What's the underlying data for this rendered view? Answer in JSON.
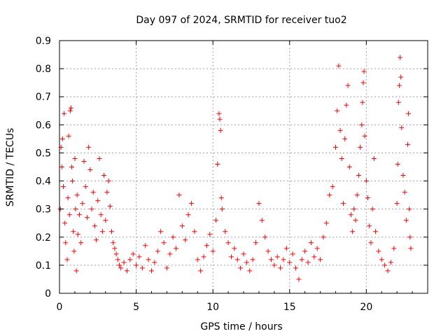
{
  "chart_data": {
    "type": "scatter",
    "title": "Day 097 of 2024, SRMTID for receiver tuo2",
    "xlabel": "GPS time / hours",
    "ylabel": "SRMTID / TECUs",
    "xlim": [
      0,
      24
    ],
    "ylim": [
      0,
      0.9
    ],
    "xticks": [
      0,
      5,
      10,
      15,
      20
    ],
    "xtick_labels": [
      "0",
      "5",
      "10",
      "15",
      "20"
    ],
    "yticks": [
      0,
      0.1,
      0.2,
      0.3,
      0.4,
      0.5,
      0.6,
      0.7,
      0.8,
      0.9
    ],
    "ytick_labels": [
      "0",
      "0.1",
      "0.2",
      "0.3",
      "0.4",
      "0.5",
      "0.6",
      "0.7",
      "0.8",
      "0.9"
    ],
    "grid": true,
    "marker": "+",
    "series": [
      {
        "name": "SRMTID",
        "color": "#ff0000",
        "points": [
          [
            0.05,
            0.3
          ],
          [
            0.1,
            0.52
          ],
          [
            0.15,
            0.45
          ],
          [
            0.2,
            0.55
          ],
          [
            0.25,
            0.38
          ],
          [
            0.3,
            0.64
          ],
          [
            0.35,
            0.25
          ],
          [
            0.4,
            0.18
          ],
          [
            0.5,
            0.12
          ],
          [
            0.55,
            0.34
          ],
          [
            0.6,
            0.56
          ],
          [
            0.65,
            0.28
          ],
          [
            0.7,
            0.65
          ],
          [
            0.75,
            0.66
          ],
          [
            0.8,
            0.45
          ],
          [
            0.85,
            0.4
          ],
          [
            0.9,
            0.22
          ],
          [
            0.95,
            0.15
          ],
          [
            1.0,
            0.48
          ],
          [
            1.05,
            0.3
          ],
          [
            1.1,
            0.08
          ],
          [
            1.15,
            0.35
          ],
          [
            1.2,
            0.21
          ],
          [
            1.3,
            0.28
          ],
          [
            1.4,
            0.18
          ],
          [
            1.5,
            0.32
          ],
          [
            1.6,
            0.47
          ],
          [
            1.7,
            0.38
          ],
          [
            1.8,
            0.27
          ],
          [
            1.9,
            0.52
          ],
          [
            2.0,
            0.44
          ],
          [
            2.1,
            0.3
          ],
          [
            2.2,
            0.36
          ],
          [
            2.3,
            0.24
          ],
          [
            2.4,
            0.19
          ],
          [
            2.5,
            0.33
          ],
          [
            2.6,
            0.48
          ],
          [
            2.7,
            0.28
          ],
          [
            2.8,
            0.22
          ],
          [
            2.9,
            0.42
          ],
          [
            3.0,
            0.26
          ],
          [
            3.1,
            0.36
          ],
          [
            3.2,
            0.4
          ],
          [
            3.3,
            0.31
          ],
          [
            3.4,
            0.22
          ],
          [
            3.5,
            0.18
          ],
          [
            3.6,
            0.16
          ],
          [
            3.7,
            0.14
          ],
          [
            3.8,
            0.12
          ],
          [
            3.9,
            0.1
          ],
          [
            4.0,
            0.09
          ],
          [
            4.2,
            0.11
          ],
          [
            4.4,
            0.08
          ],
          [
            4.6,
            0.12
          ],
          [
            4.8,
            0.14
          ],
          [
            5.0,
            0.1
          ],
          [
            5.2,
            0.13
          ],
          [
            5.4,
            0.09
          ],
          [
            5.6,
            0.17
          ],
          [
            5.8,
            0.12
          ],
          [
            6.0,
            0.08
          ],
          [
            6.2,
            0.11
          ],
          [
            6.4,
            0.15
          ],
          [
            6.6,
            0.22
          ],
          [
            6.8,
            0.18
          ],
          [
            7.0,
            0.09
          ],
          [
            7.2,
            0.14
          ],
          [
            7.4,
            0.2
          ],
          [
            7.6,
            0.16
          ],
          [
            7.8,
            0.35
          ],
          [
            8.0,
            0.24
          ],
          [
            8.2,
            0.19
          ],
          [
            8.4,
            0.28
          ],
          [
            8.6,
            0.32
          ],
          [
            8.8,
            0.22
          ],
          [
            9.0,
            0.12
          ],
          [
            9.2,
            0.08
          ],
          [
            9.4,
            0.13
          ],
          [
            9.6,
            0.17
          ],
          [
            9.8,
            0.21
          ],
          [
            10.0,
            0.15
          ],
          [
            10.2,
            0.26
          ],
          [
            10.3,
            0.46
          ],
          [
            10.4,
            0.64
          ],
          [
            10.45,
            0.62
          ],
          [
            10.5,
            0.58
          ],
          [
            10.55,
            0.34
          ],
          [
            10.6,
            0.3
          ],
          [
            10.8,
            0.22
          ],
          [
            11.0,
            0.18
          ],
          [
            11.2,
            0.13
          ],
          [
            11.4,
            0.16
          ],
          [
            11.6,
            0.12
          ],
          [
            11.8,
            0.09
          ],
          [
            12.0,
            0.14
          ],
          [
            12.2,
            0.11
          ],
          [
            12.4,
            0.08
          ],
          [
            12.6,
            0.12
          ],
          [
            12.8,
            0.18
          ],
          [
            13.0,
            0.32
          ],
          [
            13.2,
            0.26
          ],
          [
            13.4,
            0.2
          ],
          [
            13.6,
            0.15
          ],
          [
            13.8,
            0.12
          ],
          [
            14.0,
            0.1
          ],
          [
            14.2,
            0.13
          ],
          [
            14.4,
            0.09
          ],
          [
            14.6,
            0.12
          ],
          [
            14.8,
            0.16
          ],
          [
            15.0,
            0.11
          ],
          [
            15.2,
            0.14
          ],
          [
            15.4,
            0.09
          ],
          [
            15.6,
            0.05
          ],
          [
            15.8,
            0.12
          ],
          [
            16.0,
            0.15
          ],
          [
            16.2,
            0.11
          ],
          [
            16.4,
            0.18
          ],
          [
            16.6,
            0.13
          ],
          [
            16.8,
            0.16
          ],
          [
            17.0,
            0.12
          ],
          [
            17.2,
            0.2
          ],
          [
            17.4,
            0.25
          ],
          [
            17.6,
            0.35
          ],
          [
            17.8,
            0.38
          ],
          [
            18.0,
            0.52
          ],
          [
            18.1,
            0.65
          ],
          [
            18.2,
            0.81
          ],
          [
            18.3,
            0.58
          ],
          [
            18.4,
            0.48
          ],
          [
            18.5,
            0.32
          ],
          [
            18.6,
            0.55
          ],
          [
            18.7,
            0.67
          ],
          [
            18.8,
            0.74
          ],
          [
            18.9,
            0.45
          ],
          [
            19.0,
            0.28
          ],
          [
            19.1,
            0.22
          ],
          [
            19.2,
            0.3
          ],
          [
            19.3,
            0.26
          ],
          [
            19.4,
            0.35
          ],
          [
            19.5,
            0.42
          ],
          [
            19.6,
            0.52
          ],
          [
            19.7,
            0.6
          ],
          [
            19.75,
            0.68
          ],
          [
            19.8,
            0.75
          ],
          [
            19.85,
            0.79
          ],
          [
            19.9,
            0.56
          ],
          [
            20.0,
            0.4
          ],
          [
            20.1,
            0.34
          ],
          [
            20.2,
            0.24
          ],
          [
            20.3,
            0.18
          ],
          [
            20.4,
            0.3
          ],
          [
            20.5,
            0.48
          ],
          [
            20.6,
            0.22
          ],
          [
            20.8,
            0.15
          ],
          [
            21.0,
            0.12
          ],
          [
            21.2,
            0.1
          ],
          [
            21.4,
            0.08
          ],
          [
            21.6,
            0.11
          ],
          [
            21.8,
            0.16
          ],
          [
            22.0,
            0.32
          ],
          [
            22.05,
            0.46
          ],
          [
            22.1,
            0.68
          ],
          [
            22.15,
            0.74
          ],
          [
            22.2,
            0.84
          ],
          [
            22.25,
            0.77
          ],
          [
            22.3,
            0.59
          ],
          [
            22.4,
            0.42
          ],
          [
            22.5,
            0.36
          ],
          [
            22.6,
            0.26
          ],
          [
            22.7,
            0.53
          ],
          [
            22.75,
            0.64
          ],
          [
            22.8,
            0.3
          ],
          [
            22.85,
            0.2
          ],
          [
            22.9,
            0.16
          ]
        ]
      }
    ]
  }
}
